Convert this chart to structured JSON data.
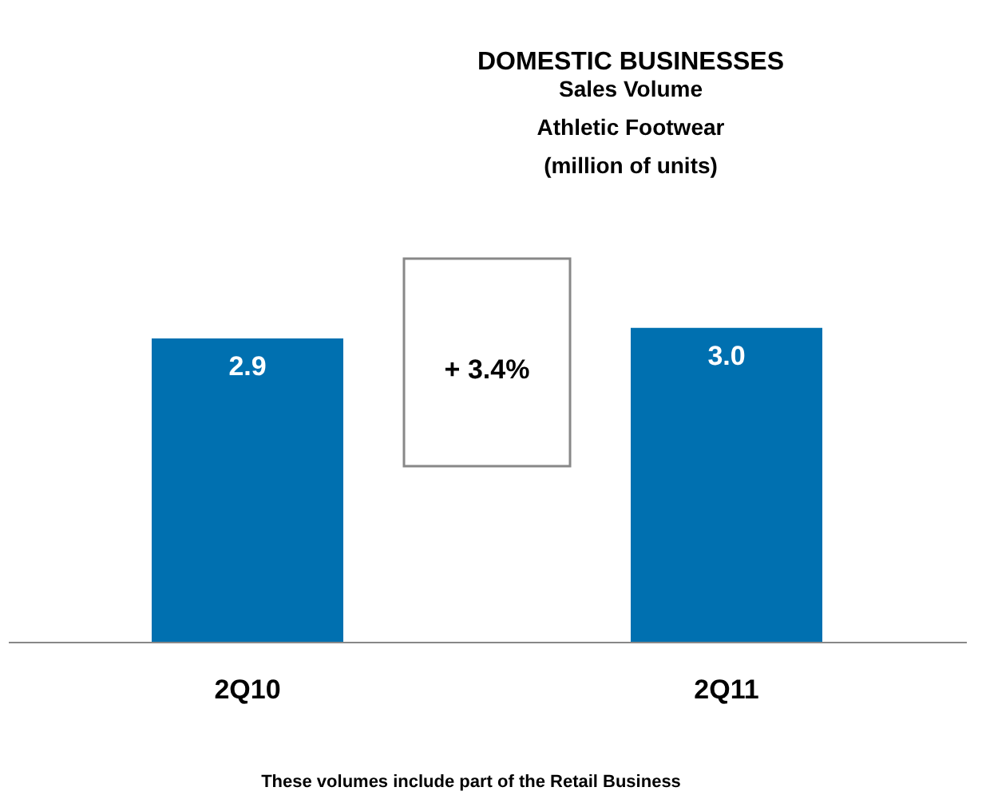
{
  "chart_data": {
    "type": "bar",
    "title": "DOMESTIC BUSINESSES",
    "subtitle": "Sales Volume\nAthletic Footwear\n(million of units)",
    "categories": [
      "2Q10",
      "2Q11"
    ],
    "values": [
      2.9,
      3.0
    ],
    "value_labels": [
      "2.9",
      "3.0"
    ],
    "color": "#0070b0",
    "annotations": [
      "+ 3.4%",
      "These volumes include part of the Retail Business"
    ]
  }
}
